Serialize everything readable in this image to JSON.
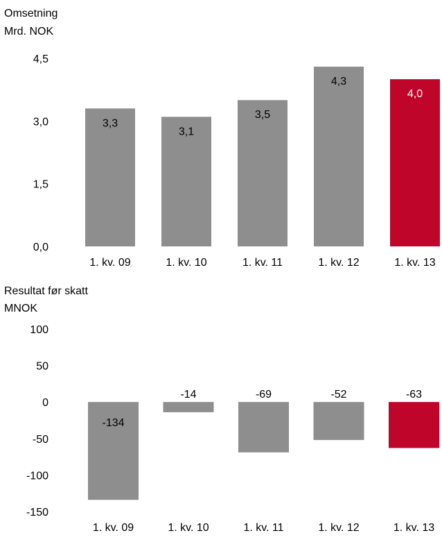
{
  "chart_data": [
    {
      "type": "bar",
      "title": "Omsetning",
      "ylabel": "Mrd. NOK",
      "categories": [
        "1. kv. 09",
        "1. kv. 10",
        "1. kv. 11",
        "1. kv. 12",
        "1. kv. 13"
      ],
      "values": [
        3.3,
        3.1,
        3.5,
        4.3,
        4.0
      ],
      "value_labels": [
        "3,3",
        "3,1",
        "3,5",
        "4,3",
        "4,0"
      ],
      "yticks": [
        "0,0",
        "1,5",
        "3,0",
        "4,5"
      ],
      "ylim": [
        0,
        4.5
      ],
      "grid": false,
      "colors": {
        "default": "#8e8e8e",
        "highlight": "#c0052a",
        "highlight_label": "#ffffff"
      },
      "highlight_index": 4
    },
    {
      "type": "bar",
      "title": "Resultat før skatt",
      "ylabel": "MNOK",
      "categories": [
        "1. kv. 09",
        "1. kv. 10",
        "1. kv. 11",
        "1. kv. 12",
        "1. kv. 13"
      ],
      "values": [
        -134,
        -14,
        -69,
        -52,
        -63
      ],
      "value_labels": [
        "-134",
        "-14",
        "-69",
        "-52",
        "-63"
      ],
      "yticks": [
        "100",
        "50",
        "0",
        "-50",
        "-100",
        "-150"
      ],
      "ylim": [
        -150,
        100
      ],
      "grid": false,
      "colors": {
        "default": "#8e8e8e",
        "highlight": "#c0052a",
        "highlight_label": "#000000"
      },
      "highlight_index": 4
    }
  ]
}
